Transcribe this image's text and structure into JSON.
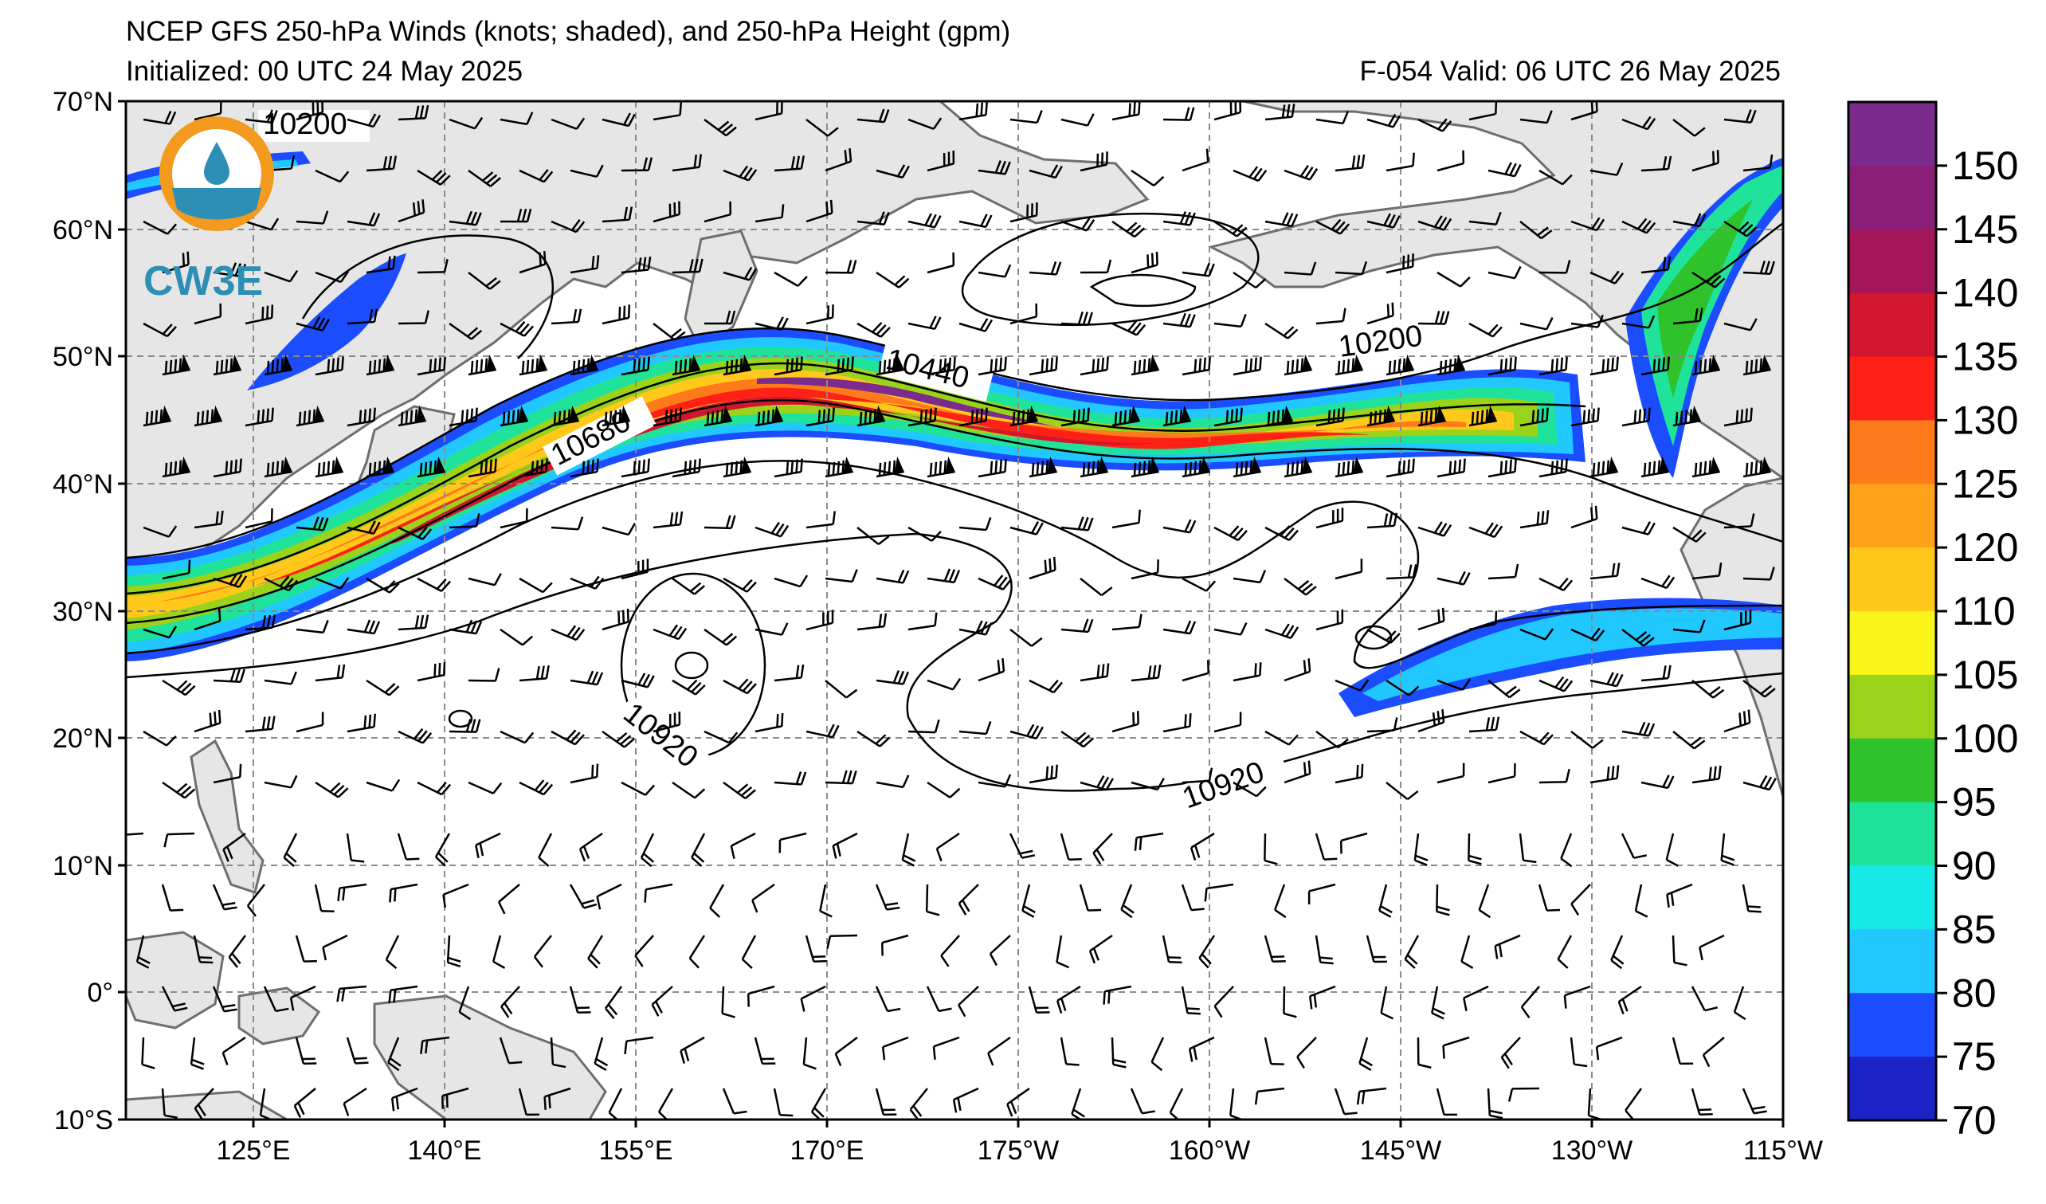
{
  "header": {
    "title": "NCEP GFS 250-hPa Winds (knots; shaded), and 250-hPa Height (gpm)",
    "initialized": "Initialized: 00 UTC 24 May 2025",
    "valid": "F-054  Valid: 06 UTC 26 May 2025"
  },
  "logo": {
    "text": "CW3E",
    "colors": {
      "ring": "#f39a1f",
      "water": "#2e8fb4"
    }
  },
  "axes": {
    "lat_labels": [
      "70°N",
      "60°N",
      "50°N",
      "40°N",
      "30°N",
      "20°N",
      "10°N",
      "0°",
      "10°S"
    ],
    "lon_labels": [
      "125°E",
      "140°E",
      "155°E",
      "170°E",
      "175°W",
      "160°W",
      "145°W",
      "130°W",
      "115°W"
    ]
  },
  "contours": {
    "labels": [
      "10200",
      "10440",
      "10680",
      "10920",
      "10920",
      "10200"
    ]
  },
  "colorbar": {
    "ticks": [
      "150",
      "145",
      "140",
      "135",
      "130",
      "125",
      "120",
      "110",
      "105",
      "100",
      "95",
      "90",
      "85",
      "80",
      "75",
      "70"
    ],
    "colors": [
      "#7b2b8c",
      "#8a1f7a",
      "#a5155a",
      "#d0172f",
      "#ff2016",
      "#ff7a1a",
      "#ffa21a",
      "#ffc81a",
      "#f9f51a",
      "#9bd21a",
      "#2fc22a",
      "#1fe39a",
      "#17e9e7",
      "#21c7ff",
      "#1b4dff",
      "#1b23c7"
    ]
  }
}
